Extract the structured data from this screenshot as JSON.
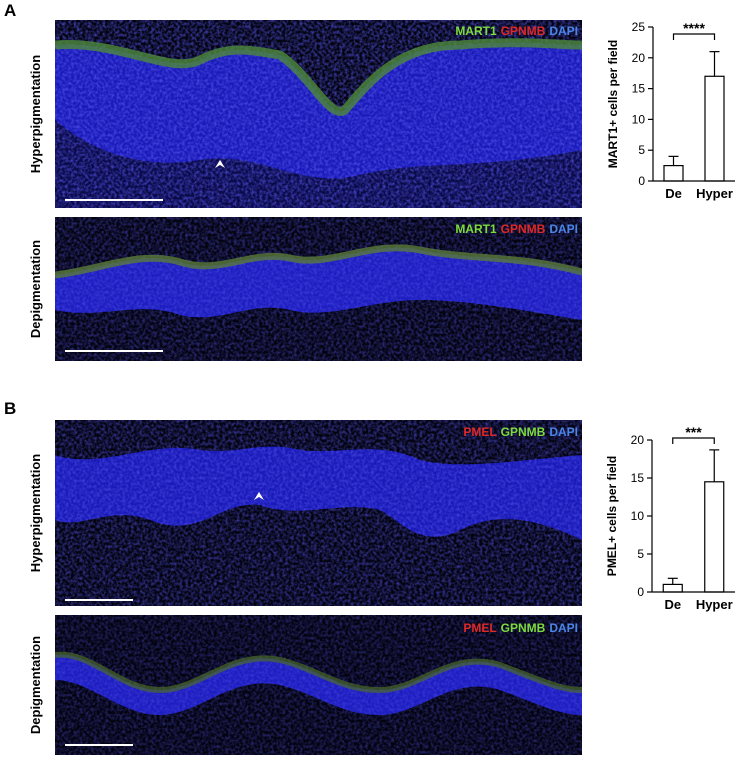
{
  "panels": [
    {
      "label": "A",
      "images": [
        {
          "row_label": "Hyperpigmentation",
          "stains": [
            {
              "name": "MART1",
              "color": "#7ddc3c"
            },
            {
              "name": "GPNMB",
              "color": "#e02828"
            },
            {
              "name": "DAPI",
              "color": "#4a86e8"
            }
          ]
        },
        {
          "row_label": "Depigmentation",
          "stains": [
            {
              "name": "MART1",
              "color": "#7ddc3c"
            },
            {
              "name": "GPNMB",
              "color": "#e02828"
            },
            {
              "name": "DAPI",
              "color": "#4a86e8"
            }
          ]
        }
      ]
    },
    {
      "label": "B",
      "images": [
        {
          "row_label": "Hyperpigmentation",
          "stains": [
            {
              "name": "PMEL",
              "color": "#e02828"
            },
            {
              "name": "GPNMB",
              "color": "#7ddc3c"
            },
            {
              "name": "DAPI",
              "color": "#4a86e8"
            }
          ]
        },
        {
          "row_label": "Depigmentation",
          "stains": [
            {
              "name": "PMEL",
              "color": "#e02828"
            },
            {
              "name": "GPNMB",
              "color": "#7ddc3c"
            },
            {
              "name": "DAPI",
              "color": "#4a86e8"
            }
          ]
        }
      ]
    }
  ],
  "chart_data": [
    {
      "type": "bar",
      "y_label": "MART1+ cells per field",
      "categories": [
        "De",
        "Hyper"
      ],
      "values": [
        2.5,
        17
      ],
      "errors": [
        1.5,
        4
      ],
      "color": "#ffffff",
      "ylim": [
        0,
        25
      ],
      "yticks": [
        0,
        5,
        10,
        15,
        20,
        25
      ],
      "annotation": "****"
    },
    {
      "type": "bar",
      "y_label": "PMEL+ cells per field",
      "categories": [
        "De",
        "Hyper"
      ],
      "values": [
        1.0,
        14.5
      ],
      "errors": [
        0.8,
        4.2
      ],
      "color": "#ffffff",
      "ylim": [
        0,
        20
      ],
      "yticks": [
        0,
        5,
        10,
        15,
        20
      ],
      "annotation": "***"
    }
  ]
}
